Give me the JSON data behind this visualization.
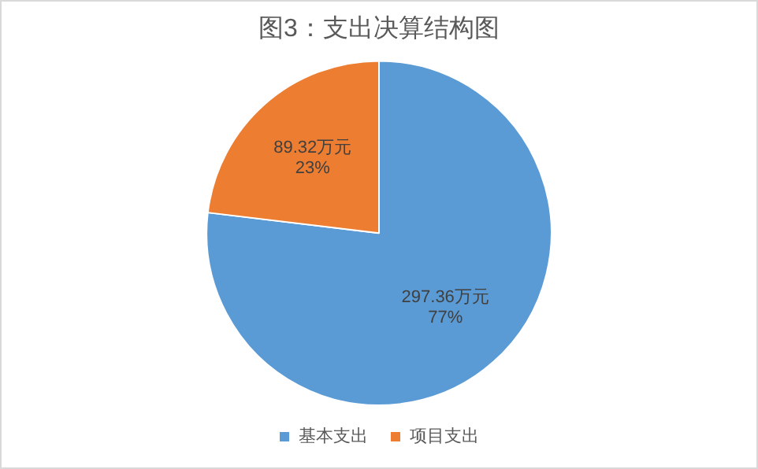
{
  "chart_data": {
    "type": "pie",
    "title": "图3：支出决算结构图",
    "categories": [
      "基本支出",
      "项目支出"
    ],
    "values": [
      297.36,
      89.32
    ],
    "colors": [
      "#5b9bd5",
      "#ed7d31"
    ],
    "value_labels": [
      "297.36万元\n77%",
      "89.32万元\n23%"
    ],
    "legend": "bottom"
  }
}
